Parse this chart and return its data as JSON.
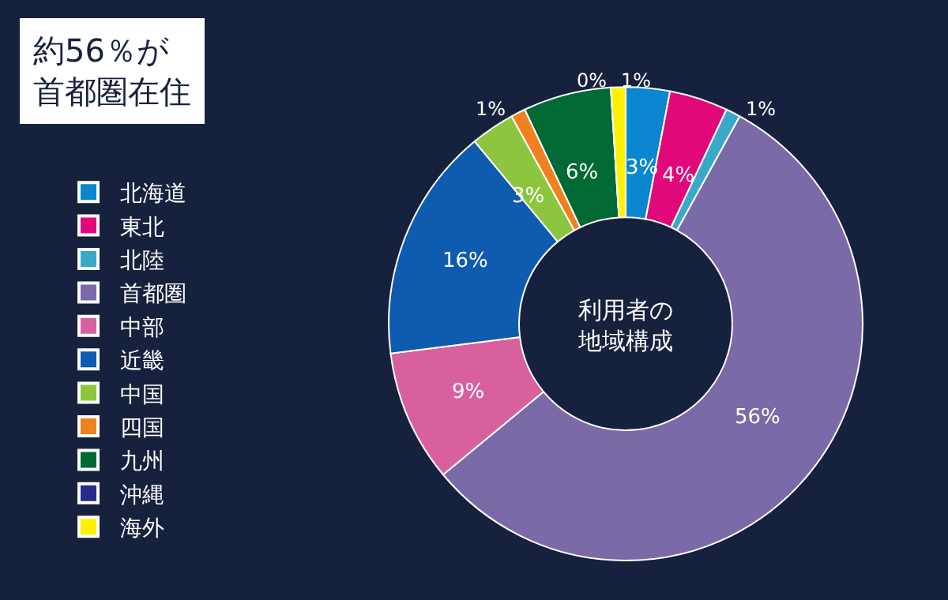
{
  "chart_data": {
    "type": "donut",
    "title": "約56％が首都圏在住",
    "annotations": [
      "利用者の地域構成"
    ],
    "categories": [
      "北海道",
      "東北",
      "北陸",
      "首都圏",
      "中部",
      "近畿",
      "中国",
      "四国",
      "九州",
      "沖縄",
      "海外"
    ],
    "values": [
      3,
      4,
      1,
      56,
      9,
      16,
      3,
      1,
      6,
      0,
      1
    ],
    "value_labels": [
      "3%",
      "4%",
      "1%",
      "56%",
      "9%",
      "16%",
      "3%",
      "1%",
      "6%",
      "0%",
      "1%"
    ],
    "colors": [
      "#0a86d0",
      "#e0087a",
      "#3aa8c8",
      "#7b6aa8",
      "#d8609e",
      "#0e5bb0",
      "#8cc63f",
      "#f08020",
      "#006934",
      "#2a2a8a",
      "#fff200"
    ],
    "legend": "left"
  }
}
